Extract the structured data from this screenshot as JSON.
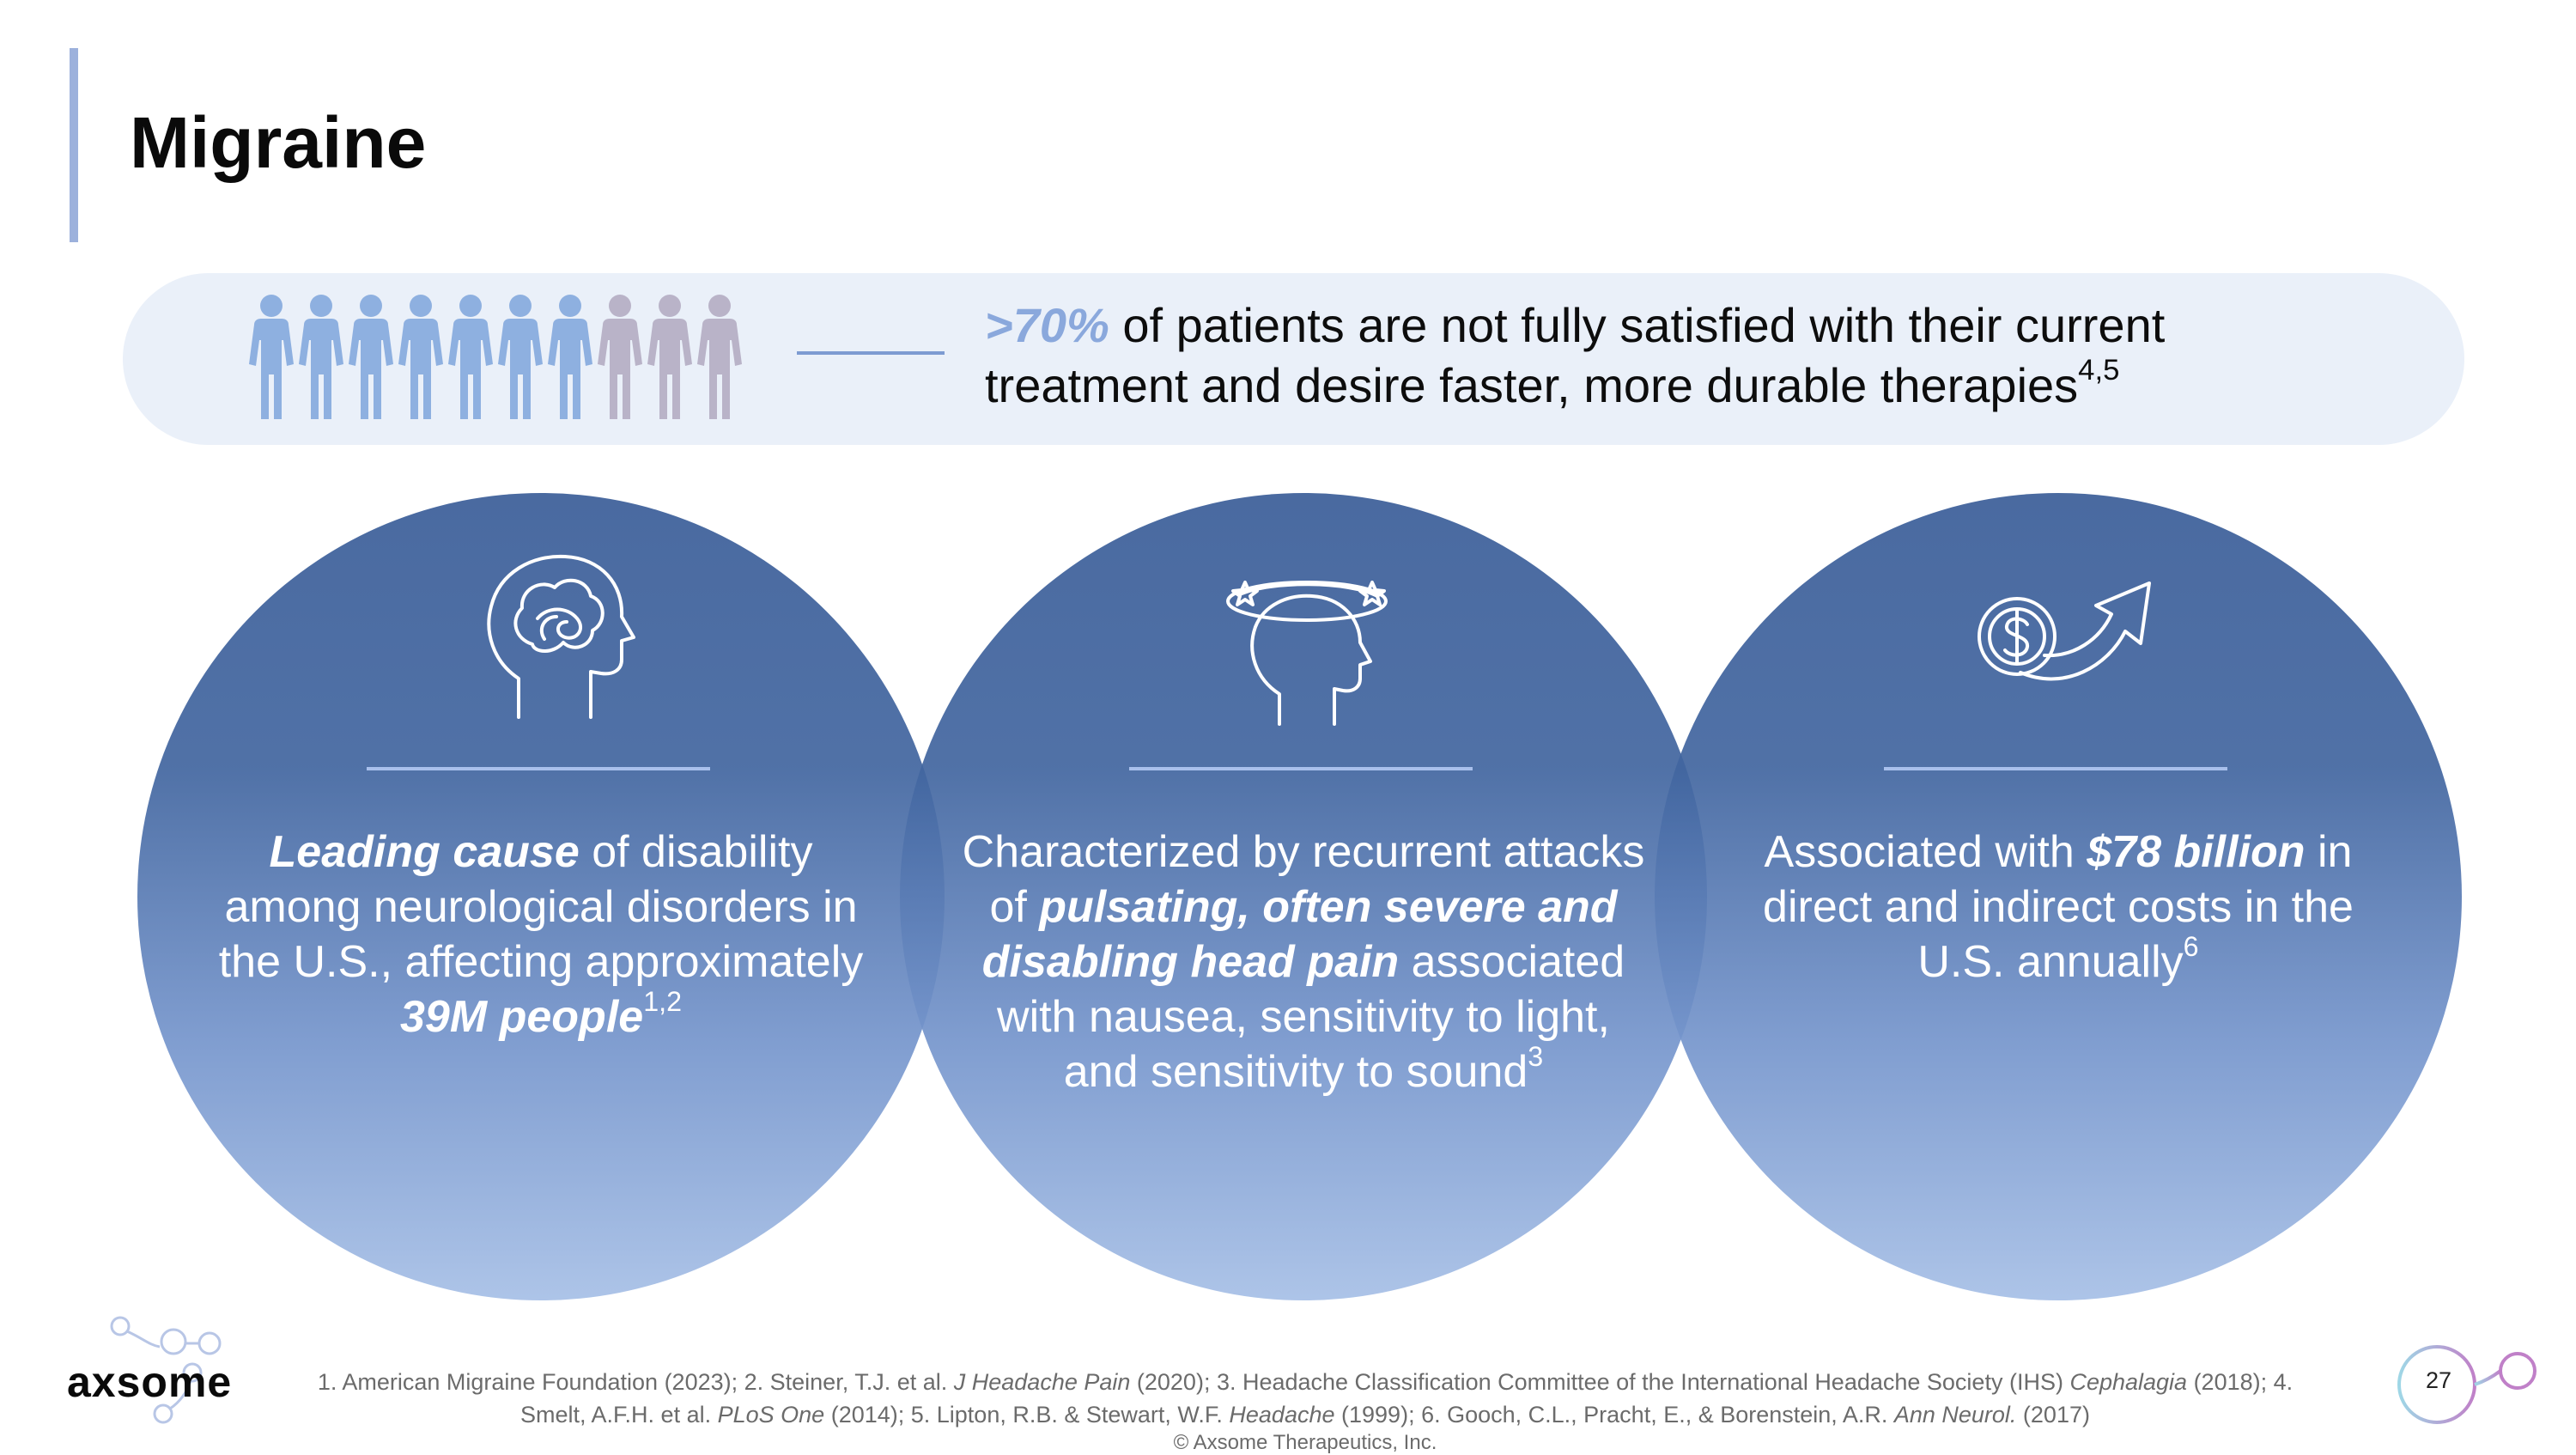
{
  "title": "Migraine",
  "banner": {
    "highlight": ">70%",
    "text_line1": " of patients are not fully satisfied with their current",
    "text_line2": "treatment and desire faster, more durable therapies",
    "sup": "4,5",
    "people_total": 10,
    "people_highlighted": 7,
    "colors": {
      "highlighted": "#8eb0e0",
      "rest": "#b9b3c8"
    }
  },
  "circles": [
    {
      "icon": "brain-head-icon",
      "b1": "Leading cause",
      "t1": " of disability among neurological disorders in the U.S., affecting approximately ",
      "b2": "39M people",
      "sup": "1,2"
    },
    {
      "icon": "dizzy-head-icon",
      "t1": "Characterized by recurrent attacks of ",
      "b1": "pulsating, often severe and disabling head pain",
      "t2": " associated with nausea, sensitivity to light, and sensitivity to sound",
      "sup": "3"
    },
    {
      "icon": "dollar-growth-icon",
      "t1": "Associated with ",
      "b1": "$78 billion",
      "t2": " in direct and indirect costs in the U.S. annually",
      "sup": "6"
    }
  ],
  "footer": {
    "logo": "axsome",
    "refs": {
      "p1": "1. American Migraine Foundation (2023); 2. Steiner, T.J. et al. ",
      "i1": "J Headache Pain",
      "p2": " (2020); 3. Headache Classification Committee of the International Headache Society (IHS) ",
      "i2": "Cephalagia",
      "p3": " (2018); 4. Smelt, A.F.H. et al. ",
      "i3": "PLoS One",
      "p4": " (2014); 5. Lipton, R.B. & Stewart, W.F. ",
      "i4": "Headache",
      "p5": " (1999); 6. Gooch, C.L., Pracht, E., & Borenstein, A.R. ",
      "i5": "Ann Neurol.",
      "p6": " (2017)"
    },
    "copyright": "© Axsome Therapeutics, Inc.",
    "page_number": "27"
  }
}
